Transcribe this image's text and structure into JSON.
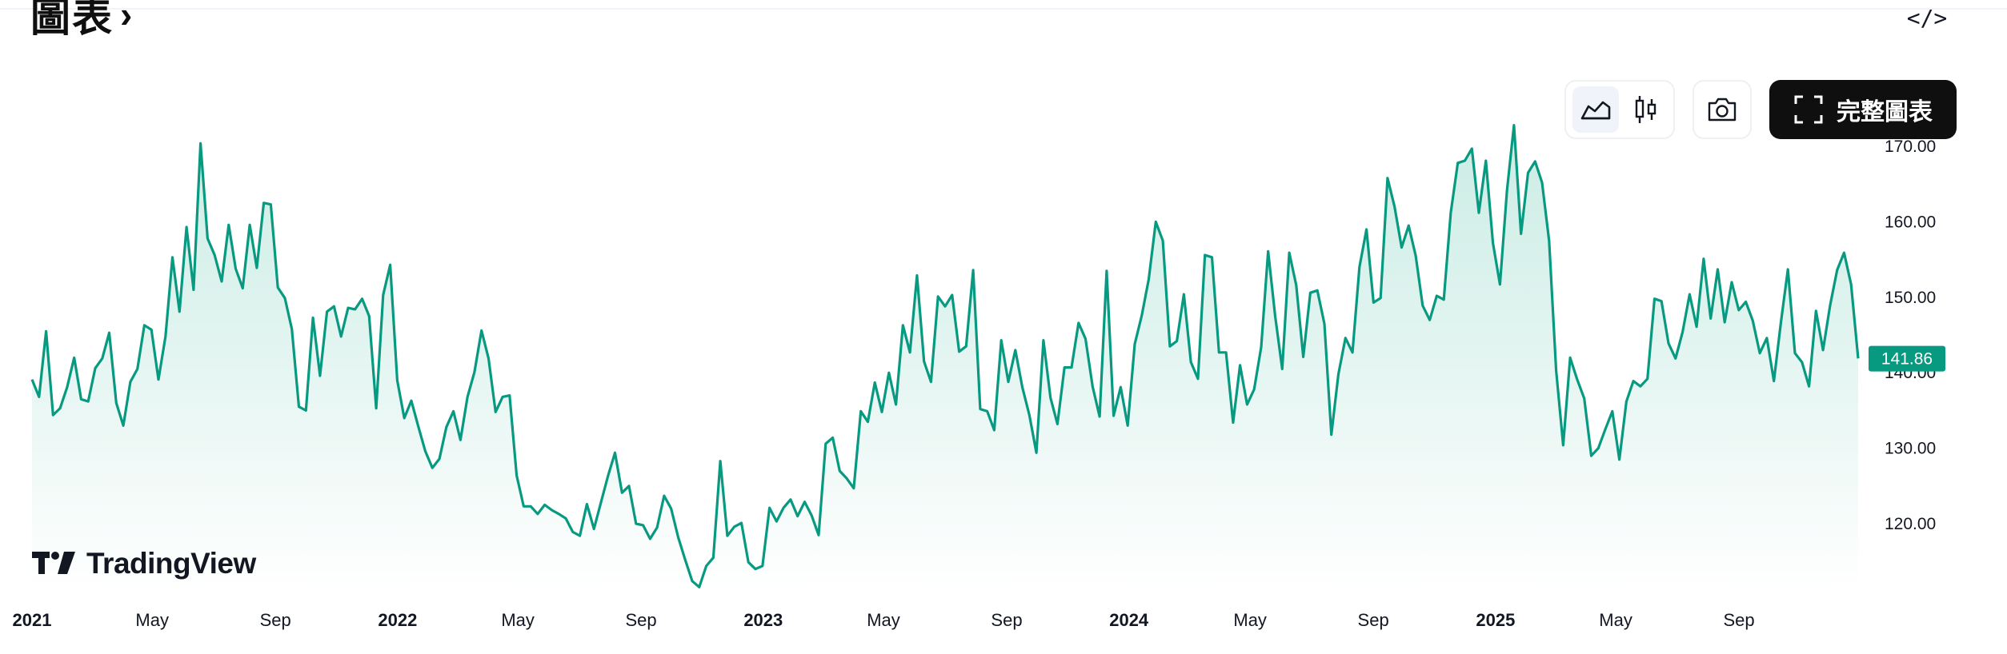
{
  "header": {
    "title": "圖表",
    "chevron": "›",
    "embed_label": "</>"
  },
  "toolbar": {
    "area_chart_icon": "area-chart-icon",
    "candles_icon": "candlestick-icon",
    "camera_icon": "camera-icon",
    "fullscreen_icon": "fullscreen-icon",
    "full_chart_label": "完整圖表",
    "active_style": "area"
  },
  "branding": {
    "logo_text": "TradingView"
  },
  "colors": {
    "line": "#089981",
    "fill_top": "#c8ebe3",
    "fill_bottom": "#ffffff",
    "price_badge_bg": "#089981",
    "price_badge_text": "#ffffff",
    "axis_text": "#131722"
  },
  "chart_data": {
    "type": "area",
    "title": "",
    "xlabel": "",
    "ylabel": "",
    "ylim": [
      111,
      173.5
    ],
    "y_ticks": [
      "120.00",
      "130.00",
      "140.00",
      "150.00",
      "160.00",
      "170.00"
    ],
    "last_price": "141.86",
    "x_ticks": [
      {
        "label": "2021",
        "date": "2021-01-01",
        "bold": true
      },
      {
        "label": "May",
        "date": "2021-05-01",
        "bold": false
      },
      {
        "label": "Sep",
        "date": "2021-09-01",
        "bold": false
      },
      {
        "label": "2022",
        "date": "2022-01-01",
        "bold": true
      },
      {
        "label": "May",
        "date": "2022-05-01",
        "bold": false
      },
      {
        "label": "Sep",
        "date": "2022-09-01",
        "bold": false
      },
      {
        "label": "2023",
        "date": "2023-01-01",
        "bold": true
      },
      {
        "label": "May",
        "date": "2023-05-01",
        "bold": false
      },
      {
        "label": "Sep",
        "date": "2023-09-01",
        "bold": false
      },
      {
        "label": "2024",
        "date": "2024-01-01",
        "bold": true
      },
      {
        "label": "May",
        "date": "2024-05-01",
        "bold": false
      },
      {
        "label": "Sep",
        "date": "2024-09-01",
        "bold": false
      },
      {
        "label": "2025",
        "date": "2025-01-01",
        "bold": true
      },
      {
        "label": "May",
        "date": "2025-05-01",
        "bold": false
      },
      {
        "label": "Sep",
        "date": "2025-09-01",
        "bold": false
      }
    ],
    "x_start": "2021-01-01",
    "x_end": "2025-12-29",
    "series": [
      {
        "values": [
          139.1,
          136.8,
          145.5,
          134.4,
          135.3,
          138.1,
          142.0,
          136.5,
          136.2,
          140.6,
          141.9,
          145.3,
          136.0,
          133.0,
          138.8,
          140.5,
          146.3,
          145.7,
          139.1,
          144.8,
          155.3,
          148.1,
          159.3,
          151.0,
          170.4,
          157.8,
          155.6,
          152.1,
          159.6,
          153.8,
          151.2,
          159.6,
          153.9,
          162.5,
          162.3,
          151.3,
          149.9,
          145.8,
          135.5,
          135.0,
          147.3,
          139.6,
          148.1,
          148.8,
          144.8,
          148.6,
          148.4,
          149.8,
          147.5,
          135.3,
          150.3,
          154.3,
          139.0,
          134.0,
          136.3,
          132.9,
          129.6,
          127.4,
          128.6,
          132.8,
          134.9,
          131.1,
          136.8,
          140.1,
          145.6,
          141.9,
          134.8,
          136.8,
          137.0,
          126.4,
          122.3,
          122.3,
          121.3,
          122.5,
          121.8,
          121.3,
          120.7,
          118.9,
          118.4,
          122.6,
          119.3,
          122.8,
          126.3,
          129.4,
          124.1,
          125.0,
          120.0,
          119.8,
          118.0,
          119.5,
          123.7,
          122.0,
          118.2,
          115.2,
          112.4,
          111.6,
          114.4,
          115.5,
          128.3,
          118.4,
          119.6,
          120.1,
          114.9,
          114.0,
          114.4,
          122.1,
          120.3,
          122.1,
          123.2,
          121.0,
          122.9,
          121.1,
          118.5,
          130.6,
          131.4,
          127.0,
          126.0,
          124.7,
          134.9,
          133.5,
          138.7,
          134.8,
          140.0,
          135.8,
          146.3,
          142.7,
          152.9,
          141.5,
          138.8,
          150.1,
          148.8,
          150.3,
          142.8,
          143.5,
          153.6,
          135.2,
          134.9,
          132.4,
          144.3,
          138.8,
          143.0,
          138.1,
          134.4,
          129.4,
          144.3,
          136.7,
          133.2,
          140.7,
          140.7,
          146.6,
          144.5,
          138.2,
          134.2,
          153.5,
          134.3,
          138.1,
          133.0,
          143.8,
          147.6,
          152.4,
          160.0,
          157.5,
          143.5,
          144.2,
          150.4,
          141.4,
          139.2,
          155.6,
          155.3,
          142.7,
          142.7,
          133.4,
          141.0,
          135.8,
          137.8,
          143.4,
          156.1,
          147.5,
          140.5,
          155.9,
          151.6,
          142.1,
          150.6,
          150.9,
          146.5,
          131.8,
          139.8,
          144.6,
          142.7,
          154.0,
          159.0,
          149.3,
          149.9,
          165.8,
          162.0,
          156.6,
          159.5,
          155.5,
          148.9,
          147.0,
          150.2,
          149.7,
          161.2,
          167.8,
          168.1,
          169.7,
          161.2,
          168.1,
          157.2,
          151.7,
          164.2,
          172.8,
          158.4,
          166.5,
          168.0,
          165.2,
          157.5,
          140.3,
          130.4,
          142.0,
          139.1,
          136.6,
          129.0,
          130.0,
          132.5,
          134.9,
          128.5,
          136.2,
          138.9,
          138.2,
          139.2,
          149.8,
          149.5,
          143.9,
          141.9,
          145.4,
          150.4,
          146.1,
          155.1,
          147.2,
          153.7,
          146.7,
          152.0,
          148.3,
          149.4,
          146.9,
          142.6,
          144.6,
          138.9,
          146.7,
          153.7,
          142.6,
          141.4,
          138.2,
          148.2,
          143.0,
          148.9,
          153.6,
          155.9,
          151.7,
          141.9
        ]
      }
    ]
  }
}
